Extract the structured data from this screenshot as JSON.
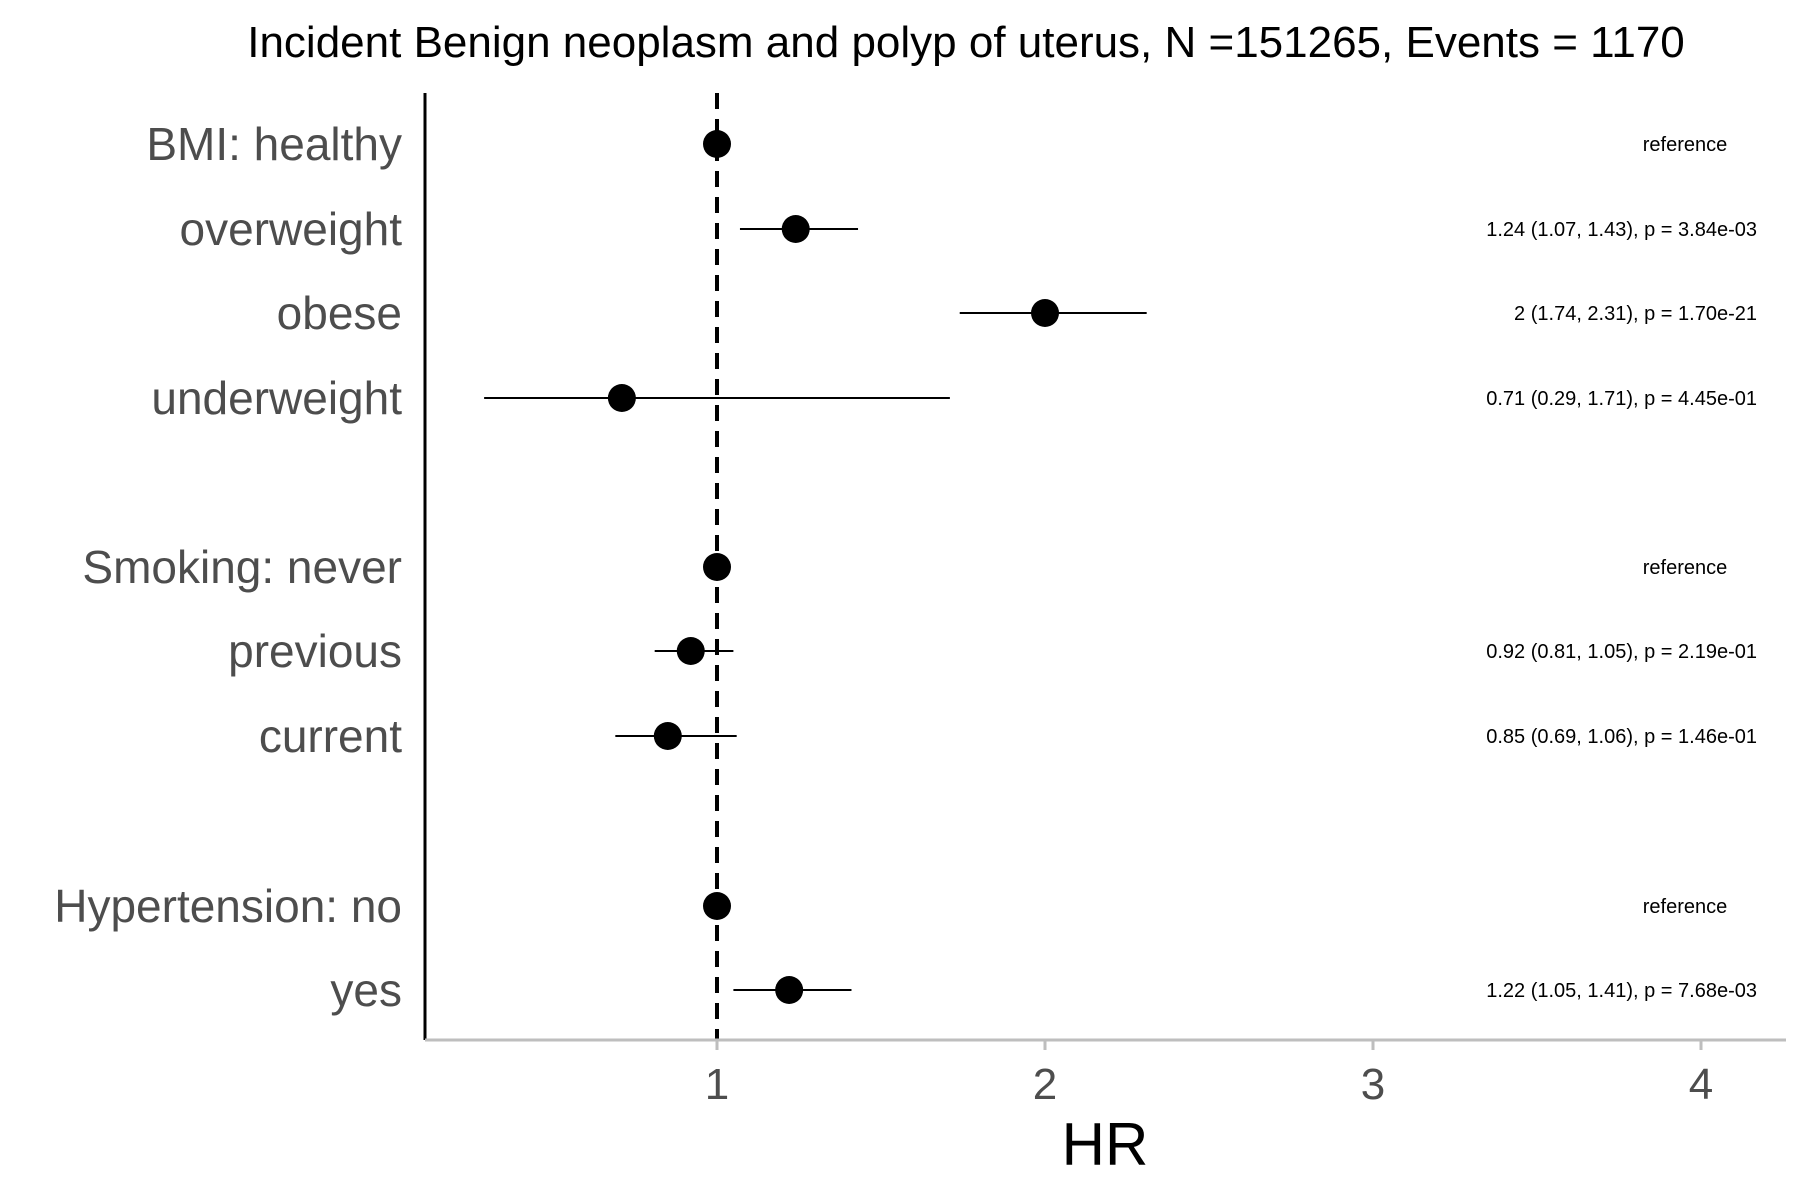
{
  "chart_data": {
    "type": "scatter",
    "subtype": "forest-plot",
    "title": "Incident Benign neoplasm and polyp of uterus, N =151265, Events = 1170",
    "xlabel": "HR",
    "ylabel": "",
    "xlim": [
      0.1,
      4.25
    ],
    "xticks": [
      1,
      2,
      3,
      4
    ],
    "xtick_labels": [
      "1",
      "2",
      "3",
      "4"
    ],
    "reference_line": 1,
    "grid": false,
    "legend": "none",
    "point_color": "#000000",
    "rows": [
      {
        "label": "BMI: healthy",
        "hr": 1,
        "lo": 1,
        "hi": 1,
        "annotation": "reference"
      },
      {
        "label": "overweight",
        "hr": 1.24,
        "lo": 1.07,
        "hi": 1.43,
        "annotation": "1.24 (1.07, 1.43), p = 3.84e-03"
      },
      {
        "label": "obese",
        "hr": 2,
        "lo": 1.74,
        "hi": 2.31,
        "annotation": "2 (1.74, 2.31), p = 1.70e-21"
      },
      {
        "label": "underweight",
        "hr": 0.71,
        "lo": 0.29,
        "hi": 1.71,
        "annotation": "0.71 (0.29, 1.71), p = 4.45e-01"
      },
      {
        "label": "Smoking: never",
        "hr": 1,
        "lo": 1,
        "hi": 1,
        "annotation": "reference"
      },
      {
        "label": "previous",
        "hr": 0.92,
        "lo": 0.81,
        "hi": 1.05,
        "annotation": "0.92 (0.81, 1.05), p = 2.19e-01"
      },
      {
        "label": "current",
        "hr": 0.85,
        "lo": 0.69,
        "hi": 1.06,
        "annotation": "0.85 (0.69, 1.06), p = 1.46e-01"
      },
      {
        "label": "Hypertension: no",
        "hr": 1,
        "lo": 1,
        "hi": 1,
        "annotation": "reference"
      },
      {
        "label": "yes",
        "hr": 1.22,
        "lo": 1.05,
        "hi": 1.41,
        "annotation": "1.22 (1.05, 1.41), p = 7.68e-03"
      }
    ]
  }
}
